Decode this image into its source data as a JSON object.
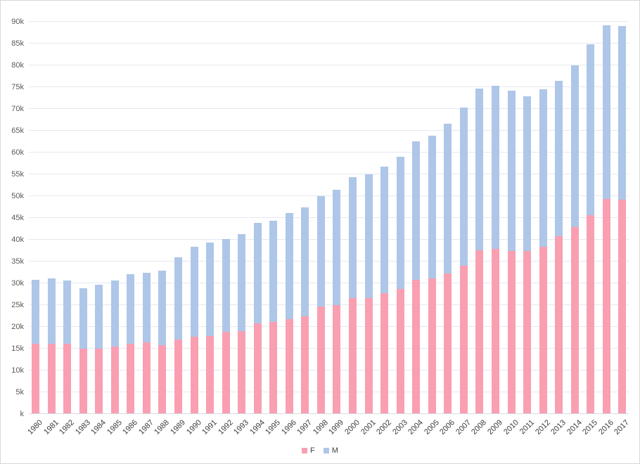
{
  "chart_data": {
    "type": "bar",
    "stacked": true,
    "title": "",
    "xlabel": "",
    "ylabel": "",
    "values_in": "thousands",
    "unit_suffix": "k",
    "grid": true,
    "legend_position": "bottom-center",
    "ylim": [
      0,
      90
    ],
    "y_tick_values": [
      0,
      5,
      10,
      15,
      20,
      25,
      30,
      35,
      40,
      45,
      50,
      55,
      60,
      65,
      70,
      75,
      80,
      85,
      90
    ],
    "y_tick_labels": [
      "k",
      "5k",
      "10k",
      "15k",
      "20k",
      "25k",
      "30k",
      "35k",
      "40k",
      "45k",
      "50k",
      "55k",
      "60k",
      "65k",
      "70k",
      "75k",
      "80k",
      "85k",
      "90k"
    ],
    "categories": [
      "1980",
      "1981",
      "1982",
      "1983",
      "1984",
      "1985",
      "1986",
      "1987",
      "1988",
      "1989",
      "1990",
      "1991",
      "1992",
      "1993",
      "1994",
      "1995",
      "1996",
      "1997",
      "1998",
      "1999",
      "2000",
      "2001",
      "2002",
      "2003",
      "2004",
      "2005",
      "2006",
      "2007",
      "2008",
      "2009",
      "2010",
      "2011",
      "2012",
      "2013",
      "2014",
      "2015",
      "2016",
      "2017"
    ],
    "series": [
      {
        "name": "F",
        "color": "#f99fb1",
        "values": [
          15.9,
          16.0,
          15.9,
          14.9,
          14.9,
          15.3,
          16.0,
          16.3,
          15.7,
          16.9,
          17.6,
          17.8,
          18.7,
          18.9,
          20.6,
          21.0,
          21.6,
          22.3,
          24.5,
          24.8,
          26.5,
          26.5,
          27.6,
          28.5,
          30.6,
          30.9,
          32.1,
          33.9,
          37.4,
          37.8,
          37.3,
          37.2,
          38.2,
          40.6,
          42.7,
          45.5,
          49.2,
          49.0
        ]
      },
      {
        "name": "M",
        "color": "#aec6e8",
        "values": [
          14.7,
          14.9,
          14.6,
          13.8,
          14.6,
          15.2,
          15.9,
          16.0,
          17.0,
          18.9,
          20.6,
          21.4,
          21.3,
          22.2,
          23.1,
          23.2,
          24.3,
          24.9,
          25.3,
          26.5,
          27.7,
          28.3,
          29.0,
          30.4,
          31.8,
          32.8,
          34.4,
          36.3,
          37.1,
          37.3,
          36.8,
          35.6,
          36.1,
          35.7,
          37.1,
          39.2,
          39.8,
          39.9
        ]
      }
    ]
  },
  "colors": {
    "background": "#ffffff",
    "frame_border": "#d8d8d8",
    "gridline": "#e5e8ef",
    "axis_line": "#d7dbe3",
    "y_tick_text": "#595959",
    "x_tick_text": "#3d3d3d",
    "legend_text": "#404040"
  },
  "legend": {
    "f_label": "F",
    "m_label": "M"
  }
}
